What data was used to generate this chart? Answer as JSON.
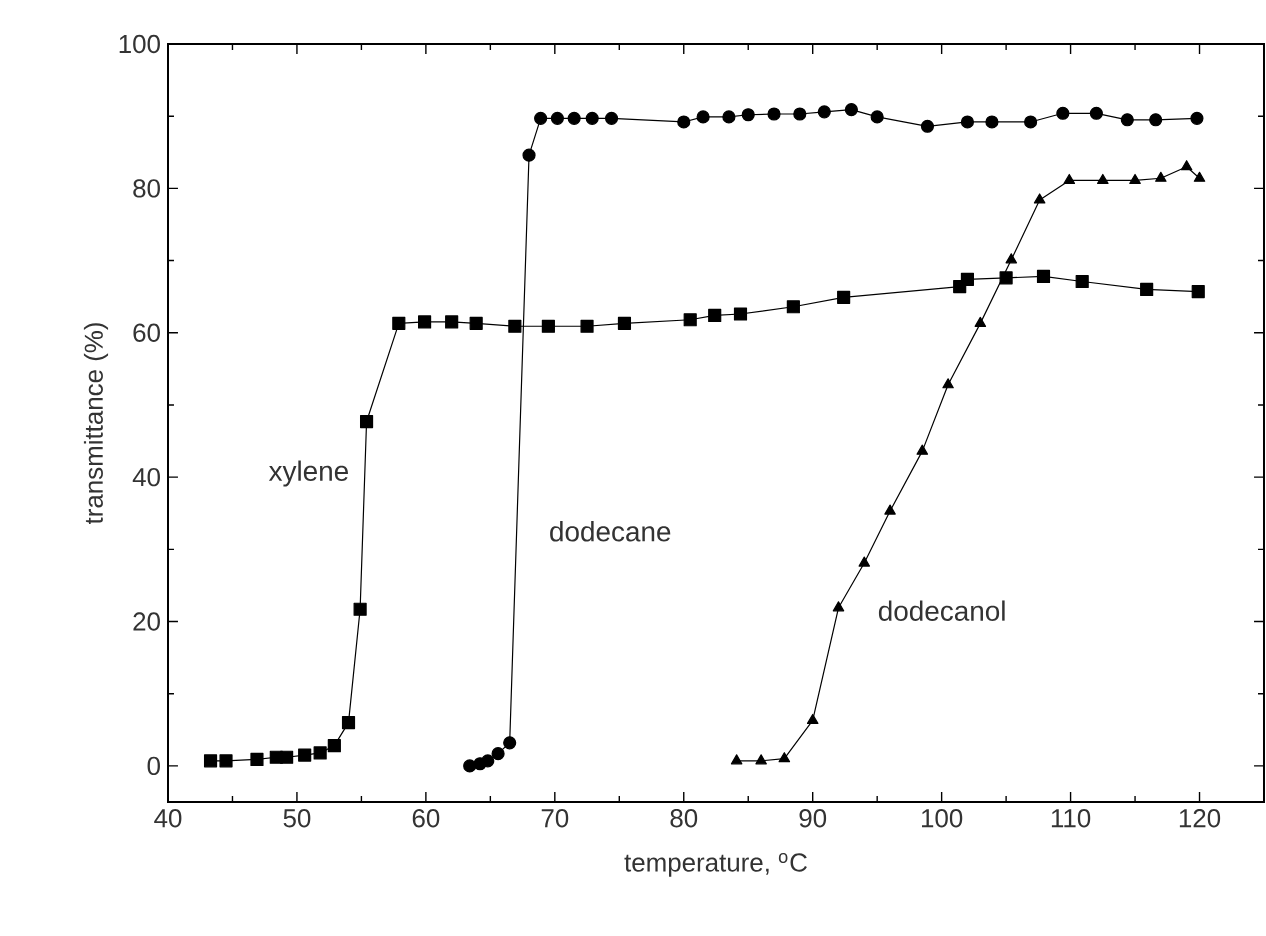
{
  "chart_data": {
    "type": "line",
    "xlabel": "temperature, $^{o}$C",
    "ylabel": "transmittance (%)",
    "xlim": [
      40,
      125
    ],
    "ylim": [
      -5,
      100
    ],
    "xticks": [
      40,
      50,
      60,
      70,
      80,
      90,
      100,
      110,
      120
    ],
    "yticks": [
      0,
      20,
      40,
      60,
      80,
      100
    ],
    "grid": false,
    "legend": false,
    "line_style": "solid",
    "series": [
      {
        "name": "xylene",
        "color": "#000000",
        "marker": "square",
        "x": [
          43.3,
          44.5,
          46.9,
          48.4,
          49.2,
          50.6,
          51.8,
          52.9,
          54.0,
          54.9,
          55.4,
          57.9,
          59.9,
          62.0,
          63.9,
          66.9,
          69.5,
          72.5,
          75.4,
          80.5,
          82.4,
          84.4,
          88.5,
          92.4,
          101.4,
          102.0,
          105.0,
          107.9,
          110.9,
          115.9,
          119.9
        ],
        "values": [
          0.7,
          0.7,
          0.9,
          1.2,
          1.2,
          1.5,
          1.8,
          2.8,
          6.0,
          21.7,
          47.7,
          61.3,
          61.5,
          61.5,
          61.3,
          60.9,
          60.9,
          60.9,
          61.3,
          61.8,
          62.4,
          62.6,
          63.6,
          64.9,
          66.4,
          67.4,
          67.6,
          67.8,
          67.1,
          66.0,
          65.7
        ]
      },
      {
        "name": "dodecane",
        "color": "#000000",
        "marker": "circle",
        "x": [
          63.4,
          64.2,
          64.8,
          65.6,
          66.5,
          68.0,
          68.9,
          70.2,
          71.5,
          72.9,
          74.4,
          80.0,
          81.5,
          83.5,
          85.0,
          87.0,
          89.0,
          90.9,
          93.0,
          95.0,
          98.9,
          102.0,
          103.9,
          106.9,
          109.4,
          112.0,
          114.4,
          116.6,
          119.8
        ],
        "values": [
          0.0,
          0.3,
          0.7,
          1.7,
          3.2,
          84.6,
          89.7,
          89.7,
          89.7,
          89.7,
          89.7,
          89.2,
          89.9,
          89.9,
          90.2,
          90.3,
          90.3,
          90.6,
          90.9,
          89.9,
          88.6,
          89.2,
          89.2,
          89.2,
          90.4,
          90.4,
          89.5,
          89.5,
          89.7
        ]
      },
      {
        "name": "dodecanol",
        "color": "#000000",
        "marker": "triangle",
        "x": [
          84.1,
          86.0,
          87.8,
          90.0,
          92.0,
          94.0,
          96.0,
          98.5,
          100.5,
          103.0,
          105.4,
          107.6,
          109.9,
          112.5,
          115.0,
          117.0,
          119.0,
          120.0
        ],
        "values": [
          0.7,
          0.7,
          1.0,
          6.3,
          21.9,
          28.1,
          35.3,
          43.6,
          52.8,
          61.3,
          70.1,
          78.4,
          81.1,
          81.1,
          81.1,
          81.4,
          83.0,
          81.4
        ]
      }
    ]
  }
}
